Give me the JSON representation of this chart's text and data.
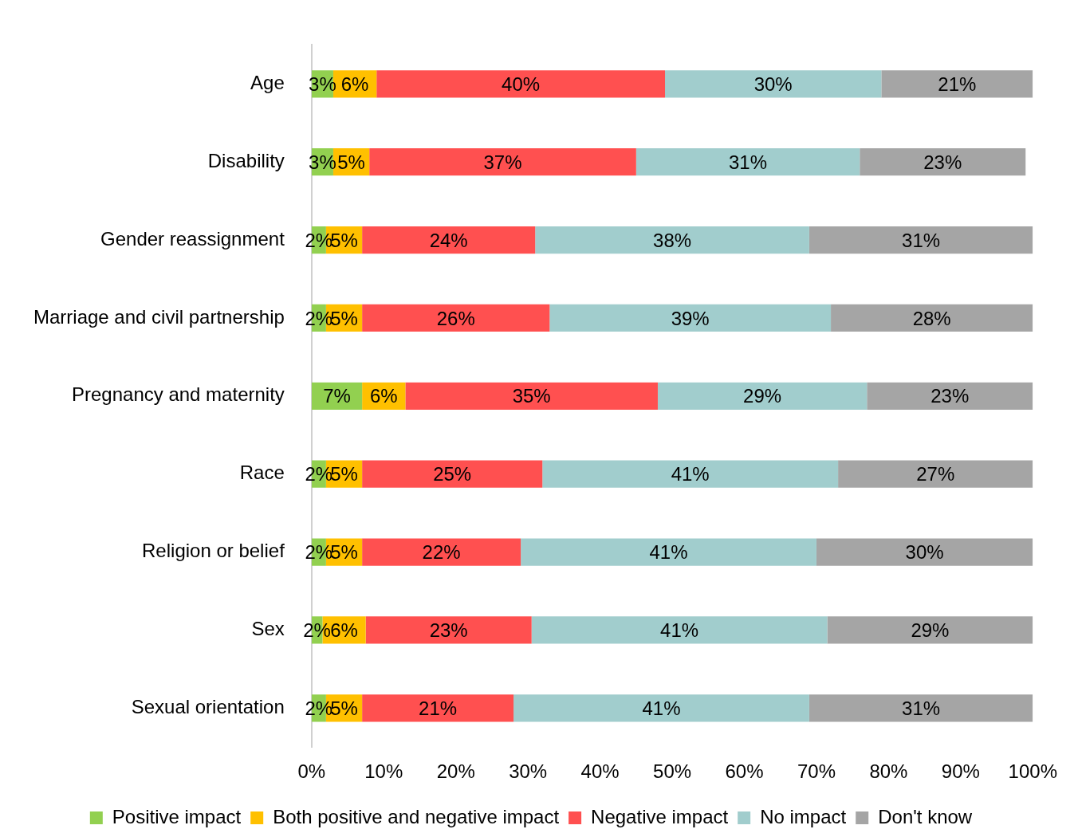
{
  "chart_data": {
    "type": "bar",
    "orientation": "horizontal",
    "stacked": true,
    "legend": "bottom",
    "grid": false,
    "categories": [
      "Age",
      "Disability",
      "Gender reassignment",
      "Marriage and civil partnership",
      "Pregnancy and maternity",
      "Race",
      "Religion or belief",
      "Sex",
      "Sexual orientation"
    ],
    "xlim": [
      0,
      100
    ],
    "xticks": [
      {
        "value": 0,
        "label": "0%"
      },
      {
        "value": 10,
        "label": "10%"
      },
      {
        "value": 20,
        "label": "20%"
      },
      {
        "value": 30,
        "label": "30%"
      },
      {
        "value": 40,
        "label": "40%"
      },
      {
        "value": 50,
        "label": "50%"
      },
      {
        "value": 60,
        "label": "60%"
      },
      {
        "value": 70,
        "label": "70%"
      },
      {
        "value": 80,
        "label": "80%"
      },
      {
        "value": 90,
        "label": "90%"
      },
      {
        "value": 100,
        "label": "100%"
      }
    ],
    "series": [
      {
        "name": "Positive impact",
        "color": "#92d050",
        "values": [
          3,
          3,
          2,
          2,
          7,
          2,
          2,
          1.5,
          2
        ],
        "value_labels": [
          "3%",
          "3%",
          "2%",
          "2%",
          "7%",
          "2%",
          "2%",
          "2%",
          "2%"
        ]
      },
      {
        "name": "Both positive and negative impact",
        "color": "#ffc000",
        "values": [
          6,
          5,
          5,
          5,
          6,
          5,
          5,
          6,
          5
        ],
        "value_labels": [
          "6%",
          "5%",
          "5%",
          "5%",
          "6%",
          "5%",
          "5%",
          "6%",
          "5%"
        ]
      },
      {
        "name": "Negative impact",
        "color": "#ff5050",
        "values": [
          40,
          37,
          24,
          26,
          35,
          25,
          22,
          23,
          21
        ],
        "value_labels": [
          "40%",
          "37%",
          "24%",
          "26%",
          "35%",
          "25%",
          "22%",
          "23%",
          "21%"
        ]
      },
      {
        "name": "No impact",
        "color": "#a1cdcd",
        "values": [
          30,
          31,
          38,
          39,
          29,
          41,
          41,
          41,
          41
        ],
        "value_labels": [
          "30%",
          "31%",
          "38%",
          "39%",
          "29%",
          "41%",
          "41%",
          "41%",
          "41%"
        ]
      },
      {
        "name": "Don't know",
        "color": "#a5a5a5",
        "values": [
          21,
          23,
          31,
          28,
          23,
          27,
          30,
          28.5,
          31
        ],
        "value_labels": [
          "21%",
          "23%",
          "31%",
          "28%",
          "23%",
          "27%",
          "30%",
          "29%",
          "31%"
        ]
      }
    ]
  }
}
